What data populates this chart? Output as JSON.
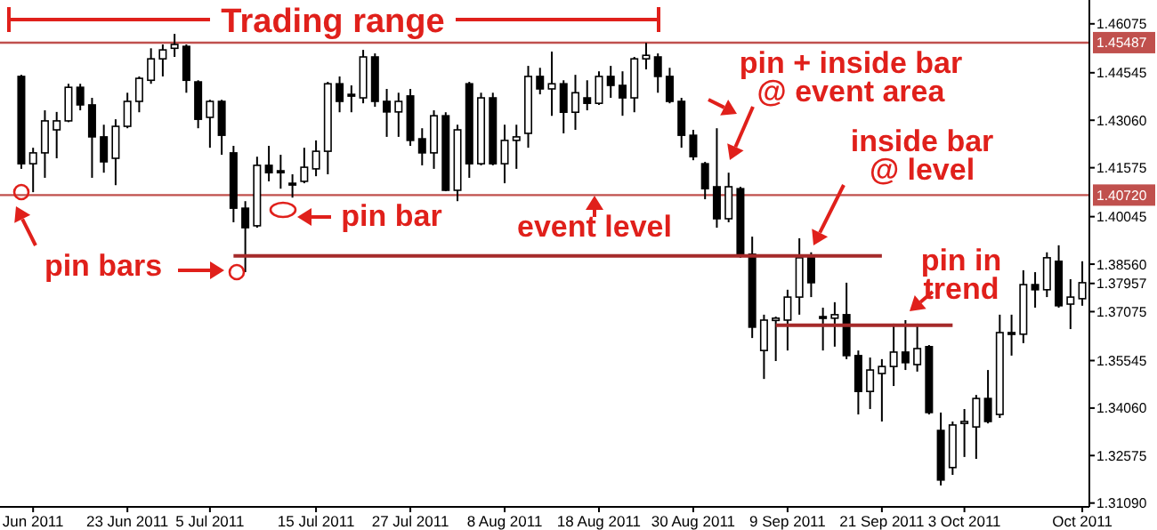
{
  "chart_data": {
    "type": "candlestick",
    "categories": [
      null,
      "Jun 2011",
      null,
      null,
      null,
      null,
      null,
      null,
      null,
      "23 Jun 2011",
      null,
      null,
      null,
      null,
      null,
      null,
      "5 Jul 2011",
      null,
      null,
      null,
      null,
      null,
      null,
      null,
      null,
      "15 Jul 2011",
      null,
      null,
      null,
      null,
      null,
      null,
      null,
      "27 Jul 2011",
      null,
      null,
      null,
      null,
      null,
      null,
      null,
      "8 Aug 2011",
      null,
      null,
      null,
      null,
      null,
      null,
      null,
      "18 Aug 2011",
      null,
      null,
      null,
      null,
      null,
      null,
      null,
      "30 Aug 2011",
      null,
      null,
      null,
      null,
      null,
      null,
      null,
      "9 Sep 2011",
      null,
      null,
      null,
      null,
      null,
      null,
      null,
      "21 Sep 2011",
      null,
      null,
      null,
      null,
      null,
      null,
      "3 Oct 2011",
      null,
      null,
      null,
      null,
      null,
      null,
      null,
      null,
      null,
      "Oct 2011"
    ],
    "ohlc": [
      [
        1.4443,
        1.4448,
        1.4154,
        1.417
      ],
      [
        1.417,
        1.422,
        1.4081,
        1.4204
      ],
      [
        1.4204,
        1.4337,
        1.4126,
        1.4304
      ],
      [
        1.4276,
        1.4332,
        1.4187,
        1.4304
      ],
      [
        1.4304,
        1.442,
        1.43,
        1.4409
      ],
      [
        1.4409,
        1.442,
        1.4337,
        1.4354
      ],
      [
        1.4354,
        1.4376,
        1.4126,
        1.4254
      ],
      [
        1.4254,
        1.4292,
        1.4142,
        1.4176
      ],
      [
        1.4187,
        1.4309,
        1.4103,
        1.4287
      ],
      [
        1.4287,
        1.4392,
        1.4281,
        1.4365
      ],
      [
        1.4365,
        1.4443,
        1.4331,
        1.4437
      ],
      [
        1.4431,
        1.4531,
        1.442,
        1.4498
      ],
      [
        1.4498,
        1.4543,
        1.4443,
        1.4526
      ],
      [
        1.4531,
        1.4576,
        1.4504,
        1.4543
      ],
      [
        1.4537,
        1.4543,
        1.4392,
        1.4431
      ],
      [
        1.4426,
        1.4431,
        1.4281,
        1.4309
      ],
      [
        1.4315,
        1.437,
        1.422,
        1.4365
      ],
      [
        1.4365,
        1.437,
        1.4198,
        1.4259
      ],
      [
        1.4204,
        1.4226,
        1.3987,
        1.4031
      ],
      [
        1.4031,
        1.4053,
        1.3831,
        1.397
      ],
      [
        1.3976,
        1.4192,
        1.397,
        1.4165
      ],
      [
        1.4165,
        1.4226,
        1.4115,
        1.4142
      ],
      [
        1.4148,
        1.4198,
        1.4092,
        1.4142
      ],
      [
        1.4109,
        1.4137,
        1.4064,
        1.4104
      ],
      [
        1.4115,
        1.422,
        1.4109,
        1.4159
      ],
      [
        1.4154,
        1.4243,
        1.4131,
        1.4209
      ],
      [
        1.4209,
        1.4426,
        1.4137,
        1.442
      ],
      [
        1.442,
        1.4443,
        1.4331,
        1.4365
      ],
      [
        1.4387,
        1.4415,
        1.4331,
        1.4382
      ],
      [
        1.4376,
        1.4526,
        1.4359,
        1.4504
      ],
      [
        1.4504,
        1.4515,
        1.4348,
        1.4365
      ],
      [
        1.4365,
        1.4404,
        1.4254,
        1.4332
      ],
      [
        1.4332,
        1.4392,
        1.4254,
        1.4365
      ],
      [
        1.4382,
        1.4404,
        1.4226,
        1.4243
      ],
      [
        1.4248,
        1.4281,
        1.4165,
        1.4204
      ],
      [
        1.4204,
        1.4337,
        1.4154,
        1.432
      ],
      [
        1.432,
        1.4331,
        1.4084,
        1.4087
      ],
      [
        1.4087,
        1.4292,
        1.4053,
        1.4276
      ],
      [
        1.442,
        1.4426,
        1.4126,
        1.417
      ],
      [
        1.417,
        1.4392,
        1.4165,
        1.4376
      ],
      [
        1.4376,
        1.4392,
        1.4165,
        1.417
      ],
      [
        1.417,
        1.4292,
        1.4109,
        1.4243
      ],
      [
        1.4243,
        1.4292,
        1.4154,
        1.4254
      ],
      [
        1.4265,
        1.4476,
        1.422,
        1.4443
      ],
      [
        1.4443,
        1.447,
        1.4387,
        1.4404
      ],
      [
        1.4404,
        1.4521,
        1.432,
        1.442
      ],
      [
        1.442,
        1.4431,
        1.4265,
        1.4331
      ],
      [
        1.4331,
        1.4448,
        1.4276,
        1.4392
      ],
      [
        1.4376,
        1.4431,
        1.4337,
        1.4359
      ],
      [
        1.4359,
        1.4459,
        1.4354,
        1.4443
      ],
      [
        1.4443,
        1.4476,
        1.4376,
        1.4415
      ],
      [
        1.4415,
        1.4459,
        1.432,
        1.4376
      ],
      [
        1.4376,
        1.4504,
        1.4331,
        1.4498
      ],
      [
        1.4498,
        1.4548,
        1.4465,
        1.4509
      ],
      [
        1.4504,
        1.4515,
        1.4392,
        1.4443
      ],
      [
        1.4443,
        1.447,
        1.4359,
        1.4365
      ],
      [
        1.4365,
        1.4376,
        1.422,
        1.4259
      ],
      [
        1.4259,
        1.4276,
        1.4181,
        1.4192
      ],
      [
        1.417,
        1.4176,
        1.4059,
        1.4092
      ],
      [
        1.4098,
        1.4281,
        1.397,
        1.3998
      ],
      [
        1.3998,
        1.4142,
        1.3987,
        1.4098
      ],
      [
        1.4092,
        1.4098,
        1.3876,
        1.3887
      ],
      [
        1.3887,
        1.3942,
        1.3625,
        1.3659
      ],
      [
        1.3586,
        1.3698,
        1.3497,
        1.3681
      ],
      [
        1.368,
        1.3692,
        1.3553,
        1.3687
      ],
      [
        1.3681,
        1.3776,
        1.3586,
        1.3753
      ],
      [
        1.3753,
        1.3937,
        1.3698,
        1.3876
      ],
      [
        1.3876,
        1.3893,
        1.3753,
        1.3798
      ],
      [
        1.3692,
        1.372,
        1.3586,
        1.3687
      ],
      [
        1.3687,
        1.3737,
        1.3598,
        1.3698
      ],
      [
        1.3698,
        1.3798,
        1.3559,
        1.357
      ],
      [
        1.357,
        1.3586,
        1.3386,
        1.3458
      ],
      [
        1.3458,
        1.3564,
        1.3403,
        1.3525
      ],
      [
        1.3514,
        1.3559,
        1.3364,
        1.3536
      ],
      [
        1.3536,
        1.367,
        1.3475,
        1.3581
      ],
      [
        1.3581,
        1.3681,
        1.3525,
        1.3548
      ],
      [
        1.3542,
        1.367,
        1.352,
        1.3592
      ],
      [
        1.3598,
        1.3603,
        1.3386,
        1.3392
      ],
      [
        1.3336,
        1.3392,
        1.3164,
        1.3181
      ],
      [
        1.322,
        1.3364,
        1.3197,
        1.3353
      ],
      [
        1.3358,
        1.3403,
        1.3253,
        1.3364
      ],
      [
        1.3347,
        1.3447,
        1.3247,
        1.3436
      ],
      [
        1.3436,
        1.3525,
        1.3358,
        1.3364
      ],
      [
        1.3386,
        1.3698,
        1.3375,
        1.3642
      ],
      [
        1.3642,
        1.3698,
        1.357,
        1.3637
      ],
      [
        1.3637,
        1.3837,
        1.3609,
        1.3792
      ],
      [
        1.3792,
        1.3831,
        1.372,
        1.3776
      ],
      [
        1.3776,
        1.3893,
        1.3753,
        1.3876
      ],
      [
        1.3865,
        1.3915,
        1.372,
        1.3726
      ],
      [
        1.3731,
        1.3809,
        1.3653,
        1.3753
      ],
      [
        1.3748,
        1.3865,
        1.3726,
        1.3798
      ]
    ],
    "series": [
      {
        "type": "line",
        "color": "#a52a2a",
        "values": [
          null,
          null,
          null,
          null,
          null,
          null,
          null,
          null,
          null,
          null,
          null,
          null,
          null,
          null,
          null,
          null,
          null,
          null,
          1.3882,
          1.3882,
          1.3882,
          1.3882,
          1.3882,
          1.3882,
          1.3882,
          1.3882,
          1.3882,
          1.3882,
          1.3882,
          1.3882,
          1.3882,
          1.3882,
          1.3882,
          1.3882,
          1.3882,
          1.3882,
          1.3882,
          1.3882,
          1.3882,
          1.3882,
          1.3882,
          1.3882,
          1.3882,
          1.3882,
          1.3882,
          1.3882,
          1.3882,
          1.3882,
          1.3882,
          1.3882,
          1.3882,
          1.3882,
          1.3882,
          1.3882,
          1.3882,
          1.3882,
          1.3882,
          1.3882,
          1.3882,
          1.3882,
          1.3882,
          1.3882,
          1.3882,
          1.3882,
          1.3882,
          1.3882,
          1.3882,
          1.3882,
          1.3882,
          1.3882,
          1.3882,
          1.3882,
          1.3882,
          1.3882,
          null,
          null,
          null,
          null,
          null,
          null,
          null,
          null,
          null,
          null,
          null,
          null,
          null,
          null,
          null,
          null,
          null
        ]
      },
      {
        "type": "line",
        "color": "#a52a2a",
        "values": [
          null,
          null,
          null,
          null,
          null,
          null,
          null,
          null,
          null,
          null,
          null,
          null,
          null,
          null,
          null,
          null,
          null,
          null,
          null,
          null,
          null,
          null,
          null,
          null,
          null,
          null,
          null,
          null,
          null,
          null,
          null,
          null,
          null,
          null,
          null,
          null,
          null,
          null,
          null,
          null,
          null,
          null,
          null,
          null,
          null,
          null,
          null,
          null,
          null,
          null,
          null,
          null,
          null,
          null,
          null,
          null,
          null,
          null,
          null,
          null,
          null,
          null,
          null,
          null,
          1.3665,
          1.3665,
          1.3665,
          1.3665,
          1.3665,
          1.3665,
          1.3665,
          1.3665,
          1.3665,
          1.3665,
          1.3665,
          1.3665,
          1.3665,
          1.3665,
          1.3665,
          1.3665,
          null,
          null,
          null,
          null,
          null,
          null,
          null,
          null,
          null,
          null,
          null
        ]
      }
    ],
    "ylim": [
      1.3097,
      1.4682
    ],
    "yticks": [
      {
        "value": 1.46075,
        "label": "1.46075"
      },
      {
        "value": 1.44545,
        "label": "1.44545"
      },
      {
        "value": 1.4306,
        "label": "1.43060"
      },
      {
        "value": 1.41575,
        "label": "1.41575"
      },
      {
        "value": 1.40045,
        "label": "1.40045"
      },
      {
        "value": 1.3856,
        "label": "1.38560"
      },
      {
        "value": 1.37957,
        "label": "1.37957"
      },
      {
        "value": 1.37075,
        "label": "1.37075"
      },
      {
        "value": 1.35545,
        "label": "1.35545"
      },
      {
        "value": 1.3406,
        "label": "1.34060"
      },
      {
        "value": 1.32575,
        "label": "1.32575"
      },
      {
        "value": 1.3109,
        "label": "1.31090"
      }
    ],
    "ref_lines": [
      {
        "axis": "y",
        "value": 1.45487,
        "label": "1.45487",
        "color": "#c0504d"
      },
      {
        "axis": "y",
        "value": 1.4072,
        "label": "1.40720",
        "color": "#c0504d"
      }
    ],
    "annotations": [
      "Trading range",
      "pin + inside bar\n@ event area",
      "inside bar\n@ level",
      "pin bars",
      "pin bar",
      "event level",
      "pin in\ntrend"
    ],
    "grid": false
  }
}
